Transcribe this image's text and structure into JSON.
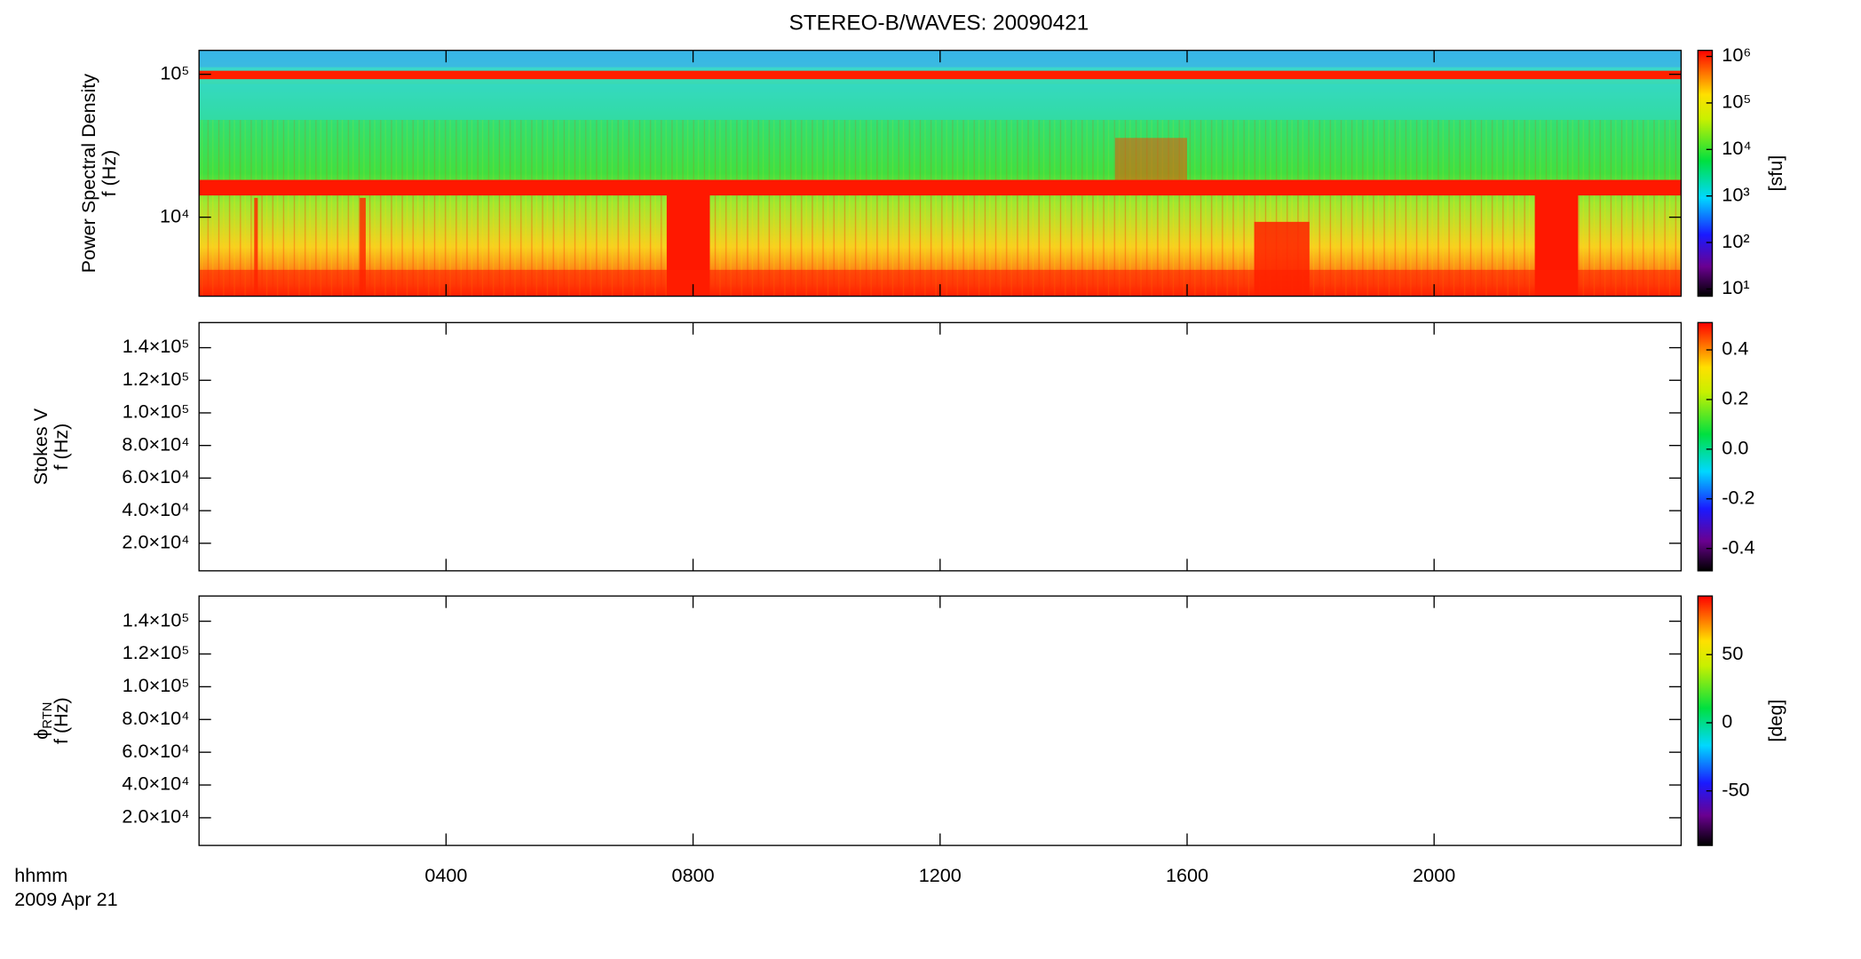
{
  "title": "STEREO-B/WAVES: 20090421",
  "time_axis": {
    "unit_label": "hhmm",
    "date_label": "2009 Apr 21"
  },
  "chart_data": [
    {
      "type": "heatmap",
      "ylabel": [
        "Power Spectral Density",
        "f (Hz)"
      ],
      "ylog": true,
      "ylim": [
        2800,
        147000
      ],
      "yticks": [
        {
          "value": 100000,
          "label": "10⁵"
        },
        {
          "value": 10000,
          "label": "10⁴"
        }
      ],
      "xlim": [
        0,
        24
      ],
      "xticks": [
        {
          "value": 4,
          "label": "0400"
        },
        {
          "value": 8,
          "label": "0800"
        },
        {
          "value": 12,
          "label": "1200"
        },
        {
          "value": 16,
          "label": "1600"
        },
        {
          "value": 20,
          "label": "2000"
        }
      ],
      "colorbar": {
        "log": true,
        "clim": [
          7,
          1350000
        ],
        "ticks": [
          {
            "value": 10,
            "label": "10¹"
          },
          {
            "value": 100,
            "label": "10²"
          },
          {
            "value": 1000,
            "label": "10³"
          },
          {
            "value": 10000,
            "label": "10⁴"
          },
          {
            "value": 100000,
            "label": "10⁵"
          },
          {
            "value": 1000000,
            "label": "10⁶"
          }
        ],
        "label": "[sfu]"
      }
    },
    {
      "type": "heatmap",
      "ylabel": [
        "Stokes V",
        "f (Hz)"
      ],
      "ylog": false,
      "ylim": [
        3100,
        155400
      ],
      "yticks": [
        {
          "value": 20000,
          "label": "2.0×10⁴"
        },
        {
          "value": 40000,
          "label": "4.0×10⁴"
        },
        {
          "value": 60000,
          "label": "6.0×10⁴"
        },
        {
          "value": 80000,
          "label": "8.0×10⁴"
        },
        {
          "value": 100000,
          "label": "1.0×10⁵"
        },
        {
          "value": 120000,
          "label": "1.2×10⁵"
        },
        {
          "value": 140000,
          "label": "1.4×10⁵"
        }
      ],
      "xlim": [
        0,
        24
      ],
      "xticks": [
        {
          "value": 4,
          "label": "0400"
        },
        {
          "value": 8,
          "label": "0800"
        },
        {
          "value": 12,
          "label": "1200"
        },
        {
          "value": 16,
          "label": "1600"
        },
        {
          "value": 20,
          "label": "2000"
        }
      ],
      "colorbar": {
        "log": false,
        "clim": [
          -0.49,
          0.51
        ],
        "ticks": [
          -0.4,
          -0.2,
          {
            "value": 0,
            "label": "0.0"
          },
          0.2,
          0.4
        ]
      }
    },
    {
      "type": "heatmap",
      "ylabel": [
        {
          "text": "ϕ",
          "sub": "RTN"
        },
        "f (Hz)"
      ],
      "ylog": false,
      "ylim": [
        3100,
        155400
      ],
      "yticks": [
        {
          "value": 20000,
          "label": "2.0×10⁴"
        },
        {
          "value": 40000,
          "label": "4.0×10⁴"
        },
        {
          "value": 60000,
          "label": "6.0×10⁴"
        },
        {
          "value": 80000,
          "label": "8.0×10⁴"
        },
        {
          "value": 100000,
          "label": "1.0×10⁵"
        },
        {
          "value": 120000,
          "label": "1.2×10⁵"
        },
        {
          "value": 140000,
          "label": "1.4×10⁵"
        }
      ],
      "xlim": [
        0,
        24
      ],
      "xticks": [
        {
          "value": 4,
          "label": "0400"
        },
        {
          "value": 8,
          "label": "0800"
        },
        {
          "value": 12,
          "label": "1200"
        },
        {
          "value": 16,
          "label": "1600"
        },
        {
          "value": 20,
          "label": "2000"
        }
      ],
      "colorbar": {
        "log": false,
        "clim": [
          -90,
          93
        ],
        "ticks": [
          -50,
          0,
          50
        ],
        "label": "[deg]"
      }
    }
  ]
}
